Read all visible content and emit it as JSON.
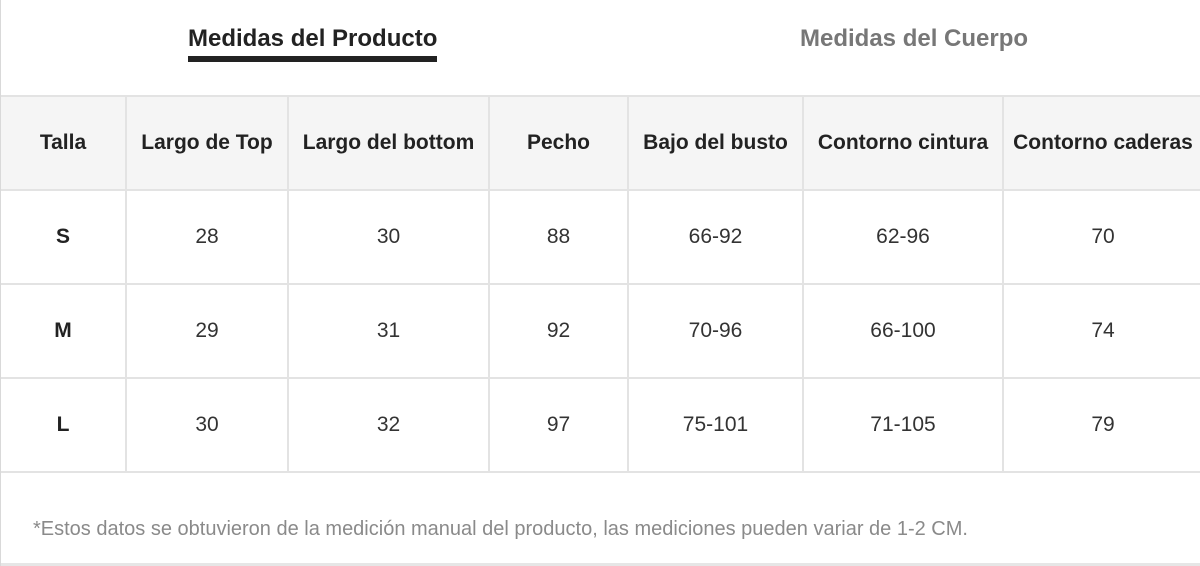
{
  "tabs": [
    {
      "label": "Medidas del Producto",
      "active": true
    },
    {
      "label": "Medidas del Cuerpo",
      "active": false
    }
  ],
  "table": {
    "headers": [
      "Talla",
      "Largo de Top",
      "Largo del bottom",
      "Pecho",
      "Bajo del busto",
      "Contorno cintura",
      "Contorno caderas"
    ],
    "rows": [
      [
        "S",
        "28",
        "30",
        "88",
        "66-92",
        "62-96",
        "70"
      ],
      [
        "M",
        "29",
        "31",
        "92",
        "70-96",
        "66-100",
        "74"
      ],
      [
        "L",
        "30",
        "32",
        "97",
        "75-101",
        "71-105",
        "79"
      ]
    ]
  },
  "note": "*Estos datos se obtuvieron de la medición manual del producto, las mediciones pueden variar de 1-2 CM.",
  "colors": {
    "active_tab": "#222222",
    "inactive_tab": "#777777",
    "header_bg": "#f5f5f5",
    "border": "#e3e3e3",
    "note_text": "#8a8a8a"
  }
}
